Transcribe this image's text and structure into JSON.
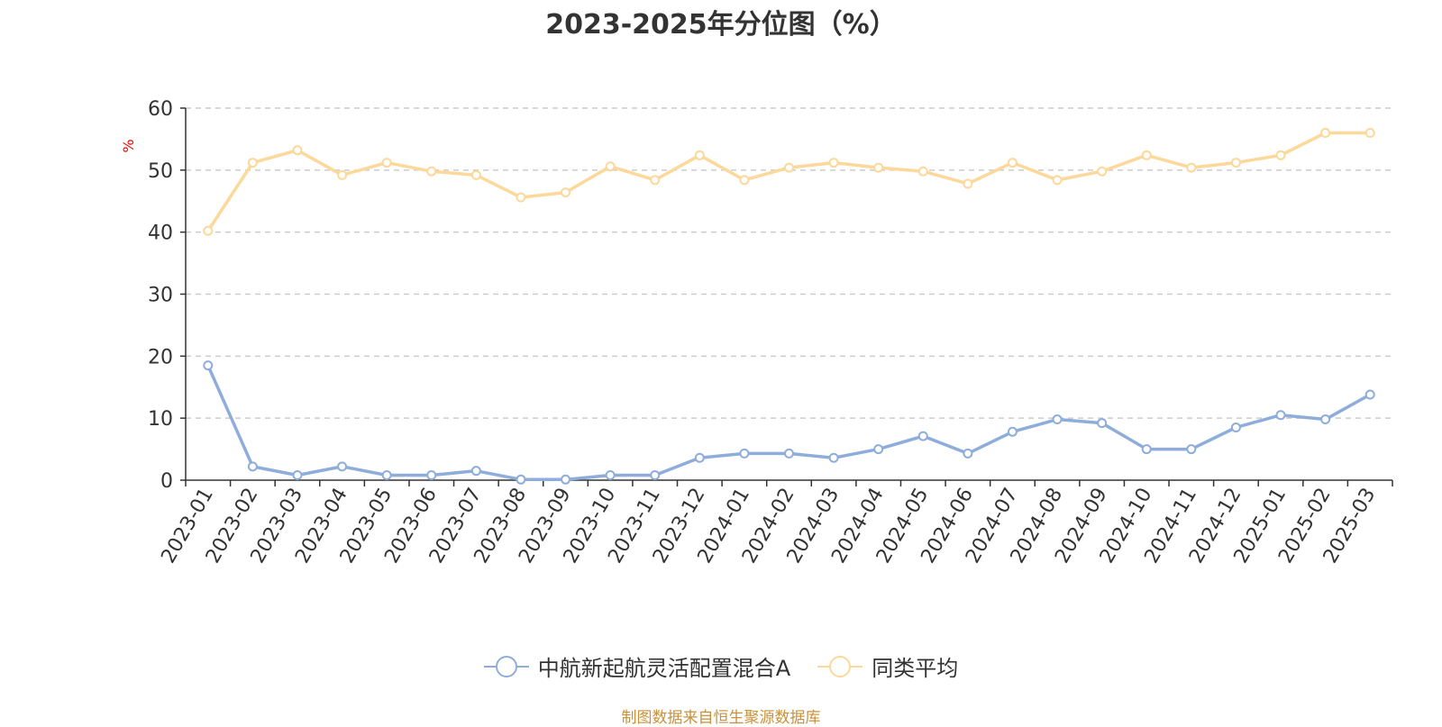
{
  "chart_data": {
    "type": "line",
    "title": "2023-2025年分位图（%）",
    "ylabel": "%",
    "xlabel": "",
    "ylim": [
      0,
      60
    ],
    "yticks": [
      0,
      10,
      20,
      30,
      40,
      50,
      60
    ],
    "grid": true,
    "legend_position": "bottom",
    "categories": [
      "2023-01",
      "2023-02",
      "2023-03",
      "2023-04",
      "2023-05",
      "2023-06",
      "2023-07",
      "2023-08",
      "2023-09",
      "2023-10",
      "2023-11",
      "2023-12",
      "2024-01",
      "2024-02",
      "2024-03",
      "2024-04",
      "2024-05",
      "2024-06",
      "2024-07",
      "2024-08",
      "2024-09",
      "2024-10",
      "2024-11",
      "2024-12",
      "2025-01",
      "2025-02",
      "2025-03"
    ],
    "series": [
      {
        "name": "中航新起航灵活配置混合A",
        "color": "#8eaddb",
        "values": [
          18.5,
          2.2,
          0.8,
          2.2,
          0.8,
          0.8,
          1.5,
          0.1,
          0.1,
          0.8,
          0.8,
          3.6,
          4.3,
          4.3,
          3.6,
          5.0,
          7.1,
          4.3,
          7.8,
          9.8,
          9.2,
          5.0,
          5.0,
          8.5,
          10.5,
          9.8,
          13.8
        ]
      },
      {
        "name": "同类平均",
        "color": "#fcd89a",
        "values": [
          40.2,
          51.2,
          53.2,
          49.2,
          51.2,
          49.8,
          49.2,
          45.6,
          46.4,
          50.6,
          48.4,
          52.4,
          48.4,
          50.4,
          51.2,
          50.4,
          49.8,
          47.8,
          51.2,
          48.4,
          49.8,
          52.4,
          50.4,
          51.2,
          52.4,
          56.0,
          56.0
        ]
      }
    ]
  },
  "footer": {
    "source": "制图数据来自恒生聚源数据库"
  }
}
